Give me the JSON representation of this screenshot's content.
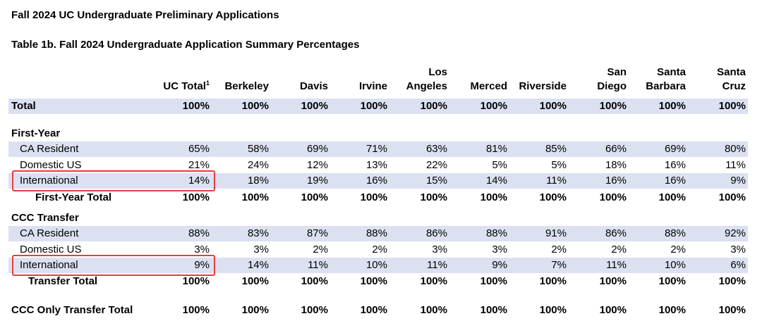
{
  "title": "Fall 2024 UC Undergraduate Preliminary Applications",
  "subtitle": "Table 1b. Fall 2024 Undergraduate Application Summary Percentages",
  "columns": [
    {
      "line1": "",
      "line2": "UC Total",
      "sup": "1"
    },
    {
      "line1": "",
      "line2": "Berkeley"
    },
    {
      "line1": "",
      "line2": "Davis"
    },
    {
      "line1": "",
      "line2": "Irvine"
    },
    {
      "line1": "Los",
      "line2": "Angeles"
    },
    {
      "line1": "",
      "line2": "Merced"
    },
    {
      "line1": "",
      "line2": "Riverside"
    },
    {
      "line1": "San",
      "line2": "Diego"
    },
    {
      "line1": "Santa",
      "line2": "Barbara"
    },
    {
      "line1": "Santa",
      "line2": "Cruz"
    }
  ],
  "rows": [
    {
      "label": "Total",
      "values": [
        "100%",
        "100%",
        "100%",
        "100%",
        "100%",
        "100%",
        "100%",
        "100%",
        "100%",
        "100%"
      ]
    },
    {
      "label": "First-Year"
    },
    {
      "label": "CA Resident",
      "values": [
        "65%",
        "58%",
        "69%",
        "71%",
        "63%",
        "81%",
        "85%",
        "66%",
        "69%",
        "80%"
      ]
    },
    {
      "label": "Domestic US",
      "values": [
        "21%",
        "24%",
        "12%",
        "13%",
        "22%",
        "5%",
        "5%",
        "18%",
        "16%",
        "11%"
      ]
    },
    {
      "label": "International",
      "values": [
        "14%",
        "18%",
        "19%",
        "16%",
        "15%",
        "14%",
        "11%",
        "16%",
        "16%",
        "9%"
      ]
    },
    {
      "label": "First-Year Total",
      "values": [
        "100%",
        "100%",
        "100%",
        "100%",
        "100%",
        "100%",
        "100%",
        "100%",
        "100%",
        "100%"
      ]
    },
    {
      "label": "CCC Transfer"
    },
    {
      "label": "CA Resident",
      "values": [
        "88%",
        "83%",
        "87%",
        "88%",
        "86%",
        "88%",
        "91%",
        "86%",
        "88%",
        "92%"
      ]
    },
    {
      "label": "Domestic US",
      "values": [
        "3%",
        "3%",
        "2%",
        "2%",
        "3%",
        "3%",
        "2%",
        "2%",
        "2%",
        "3%"
      ]
    },
    {
      "label": "International",
      "values": [
        "9%",
        "14%",
        "11%",
        "10%",
        "11%",
        "9%",
        "7%",
        "11%",
        "10%",
        "6%"
      ]
    },
    {
      "label": "Transfer Total",
      "values": [
        "100%",
        "100%",
        "100%",
        "100%",
        "100%",
        "100%",
        "100%",
        "100%",
        "100%",
        "100%"
      ]
    },
    {
      "label": "CCC Only Transfer Total",
      "values": [
        "100%",
        "100%",
        "100%",
        "100%",
        "100%",
        "100%",
        "100%",
        "100%",
        "100%",
        "100%"
      ]
    }
  ],
  "colors": {
    "band": "#dbe1f1",
    "highlight": "#e53e3e"
  }
}
